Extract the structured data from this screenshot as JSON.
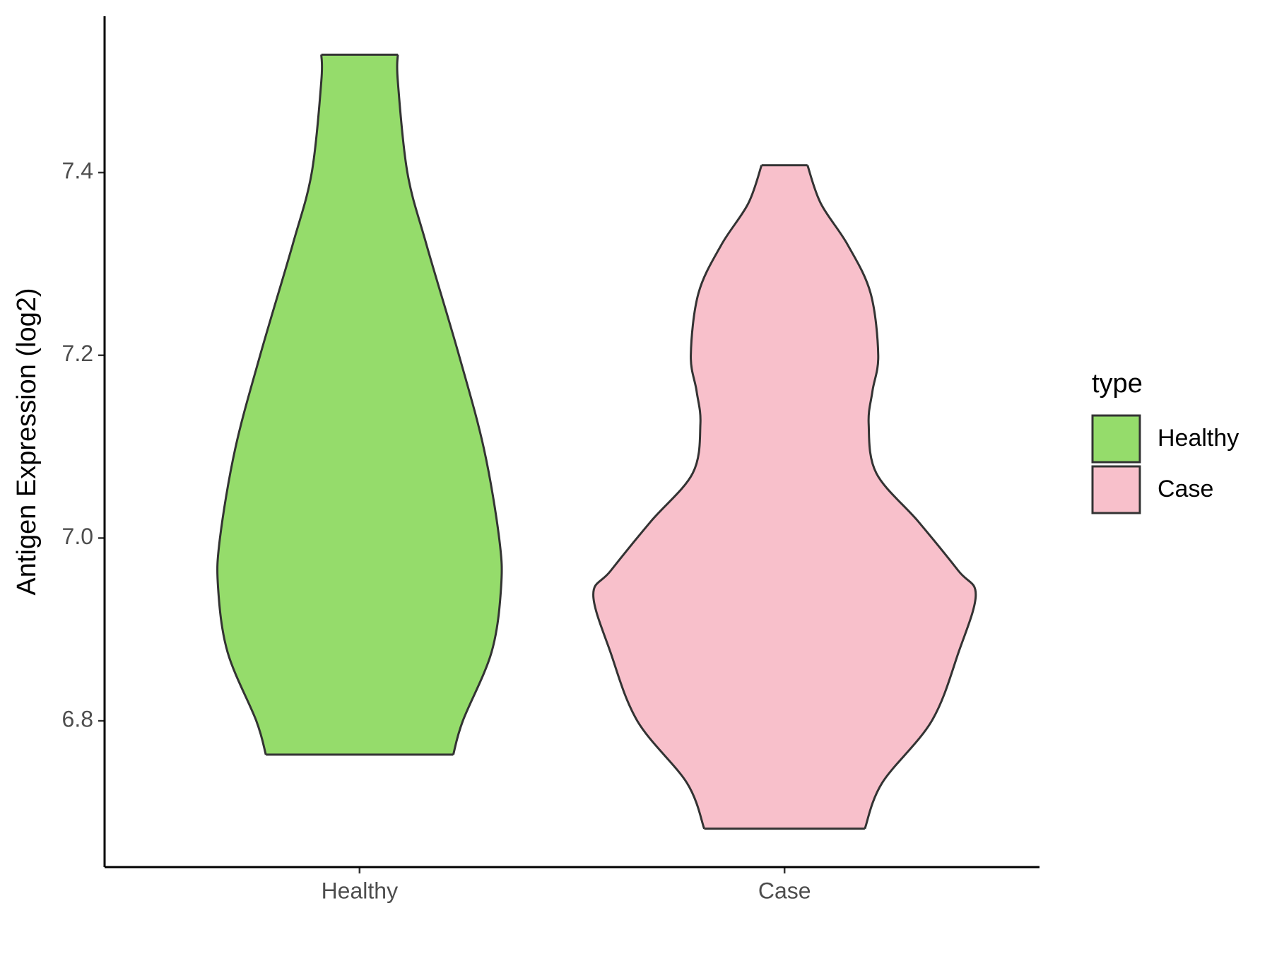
{
  "chart_data": {
    "type": "violin",
    "y_label": "Antigen Expression (log2)",
    "categories": [
      "Healthy",
      "Case"
    ],
    "ylim": [
      6.64,
      7.571
    ],
    "yticks": [
      {
        "value": 6.8,
        "label": "6.8"
      },
      {
        "value": 7.0,
        "label": "7.0"
      },
      {
        "value": 7.2,
        "label": "7.2"
      },
      {
        "value": 7.4,
        "label": "7.4"
      }
    ],
    "legend": {
      "title": "type",
      "position": "right"
    },
    "series": [
      {
        "name": "Healthy",
        "color": "#95dc6b",
        "y": [
          7.529,
          7.5,
          7.4,
          7.321,
          7.2,
          7.098,
          7.0,
          6.946,
          6.875,
          6.8,
          6.763
        ],
        "density": [
          0.2,
          0.2,
          0.25,
          0.35,
          0.52,
          0.65,
          0.73,
          0.74,
          0.69,
          0.54,
          0.49
        ]
      },
      {
        "name": "Case",
        "color": "#f8c0cb",
        "y": [
          7.408,
          7.366,
          7.321,
          7.268,
          7.2,
          7.161,
          7.125,
          7.071,
          7.018,
          6.964,
          6.938,
          6.875,
          6.8,
          6.732,
          6.682
        ],
        "density": [
          0.12,
          0.19,
          0.33,
          0.45,
          0.49,
          0.46,
          0.44,
          0.48,
          0.7,
          0.91,
          1.0,
          0.91,
          0.77,
          0.51,
          0.42
        ]
      }
    ]
  }
}
